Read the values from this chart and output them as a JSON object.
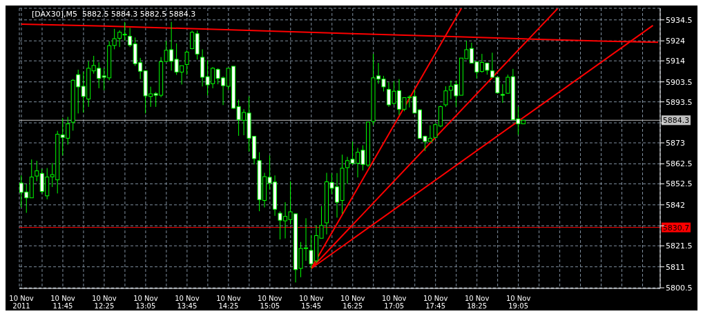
{
  "chart_data": {
    "type": "candlestick",
    "title": "[DAX30],M5  5882.5 5884.3 5882.5 5884.3",
    "series": [
      {
        "type": "candlestick",
        "color": "#00ff00",
        "x": [
          "2011-11-10T11:05",
          "2011-11-10T11:10",
          "2011-11-10T11:15",
          "2011-11-10T11:20",
          "2011-11-10T11:25",
          "2011-11-10T11:30",
          "2011-11-10T11:35",
          "2011-11-10T11:40",
          "2011-11-10T11:45",
          "2011-11-10T11:50",
          "2011-11-10T11:55",
          "2011-11-10T12:00",
          "2011-11-10T12:05",
          "2011-11-10T12:10",
          "2011-11-10T12:15",
          "2011-11-10T12:20",
          "2011-11-10T12:25",
          "2011-11-10T12:30",
          "2011-11-10T12:35",
          "2011-11-10T12:40",
          "2011-11-10T12:45",
          "2011-11-10T12:50",
          "2011-11-10T12:55",
          "2011-11-10T13:00",
          "2011-11-10T13:05",
          "2011-11-10T13:10",
          "2011-11-10T13:15",
          "2011-11-10T13:20",
          "2011-11-10T13:25",
          "2011-11-10T13:30",
          "2011-11-10T13:35",
          "2011-11-10T13:40",
          "2011-11-10T13:45",
          "2011-11-10T13:50",
          "2011-11-10T13:55",
          "2011-11-10T14:00",
          "2011-11-10T14:05",
          "2011-11-10T14:10",
          "2011-11-10T14:15",
          "2011-11-10T14:20",
          "2011-11-10T14:25",
          "2011-11-10T14:30",
          "2011-11-10T14:35",
          "2011-11-10T14:40",
          "2011-11-10T14:45",
          "2011-11-10T14:50",
          "2011-11-10T14:55",
          "2011-11-10T15:00",
          "2011-11-10T15:05",
          "2011-11-10T15:10",
          "2011-11-10T15:15",
          "2011-11-10T15:20",
          "2011-11-10T15:25",
          "2011-11-10T15:30",
          "2011-11-10T15:35",
          "2011-11-10T15:40",
          "2011-11-10T15:45",
          "2011-11-10T15:50",
          "2011-11-10T15:55",
          "2011-11-10T16:00",
          "2011-11-10T16:05",
          "2011-11-10T16:10",
          "2011-11-10T16:15",
          "2011-11-10T16:20",
          "2011-11-10T16:25",
          "2011-11-10T16:30",
          "2011-11-10T16:35",
          "2011-11-10T16:40",
          "2011-11-10T16:45",
          "2011-11-10T16:50",
          "2011-11-10T16:55",
          "2011-11-10T17:00",
          "2011-11-10T17:05",
          "2011-11-10T17:10",
          "2011-11-10T17:15",
          "2011-11-10T17:20",
          "2011-11-10T17:25",
          "2011-11-10T17:30",
          "2011-11-10T17:35",
          "2011-11-10T17:40",
          "2011-11-10T17:45",
          "2011-11-10T17:50",
          "2011-11-10T17:55",
          "2011-11-10T18:00",
          "2011-11-10T18:05",
          "2011-11-10T18:10",
          "2011-11-10T18:15",
          "2011-11-10T18:20",
          "2011-11-10T18:25",
          "2011-11-10T18:30",
          "2011-11-10T18:35",
          "2011-11-10T18:40",
          "2011-11-10T18:45",
          "2011-11-10T18:50",
          "2011-11-10T18:55",
          "2011-11-10T19:00",
          "2011-11-10T19:05",
          "2011-11-10T19:10"
        ],
        "ohlc": [
          [
            5852.9,
            5856.7,
            5840.7,
            5848.2
          ],
          [
            5848.4,
            5852.3,
            5838.0,
            5845.5
          ],
          [
            5845.5,
            5864.7,
            5845.5,
            5855.9
          ],
          [
            5856.4,
            5864.0,
            5853.8,
            5859.0
          ],
          [
            5857.7,
            5860.0,
            5847.6,
            5848.7
          ],
          [
            5846.5,
            5860.4,
            5844.8,
            5855.9
          ],
          [
            5856.0,
            5862.9,
            5850.9,
            5857.1
          ],
          [
            5854.5,
            5879.0,
            5847.7,
            5877.3
          ],
          [
            5877.0,
            5885.4,
            5866.7,
            5875.7
          ],
          [
            5875.3,
            5886.0,
            5872.1,
            5882.5
          ],
          [
            5883.3,
            5904.9,
            5879.1,
            5904.3
          ],
          [
            5907.1,
            5909.6,
            5887.7,
            5901.0
          ],
          [
            5901.3,
            5908.5,
            5888.1,
            5896.2
          ],
          [
            5894.9,
            5913.8,
            5891.0,
            5910.3
          ],
          [
            5909.0,
            5916.5,
            5907.6,
            5911.7
          ],
          [
            5910.3,
            5913.3,
            5900.3,
            5905.2
          ],
          [
            5906.5,
            5910.4,
            5899.3,
            5905.8
          ],
          [
            5905.5,
            5923.8,
            5904.3,
            5921.6
          ],
          [
            5921.7,
            5930.0,
            5919.8,
            5925.1
          ],
          [
            5925.3,
            5929.3,
            5920.9,
            5928.3
          ],
          [
            5927.0,
            5933.5,
            5924.1,
            5927.3
          ],
          [
            5926.3,
            5930.5,
            5920.9,
            5921.9
          ],
          [
            5922.5,
            5925.7,
            5911.5,
            5912.6
          ],
          [
            5913.1,
            5915.5,
            5904.9,
            5908.8
          ],
          [
            5909.0,
            5909.1,
            5887.7,
            5896.5
          ],
          [
            5896.2,
            5901.1,
            5891.0,
            5897.5
          ],
          [
            5897.6,
            5898.4,
            5891.0,
            5896.8
          ],
          [
            5896.8,
            5915.9,
            5895.8,
            5913.6
          ],
          [
            5913.7,
            5924.1,
            5913.6,
            5919.3
          ],
          [
            5919.6,
            5933.5,
            5909.1,
            5913.8
          ],
          [
            5914.8,
            5922.8,
            5907.0,
            5908.4
          ],
          [
            5908.4,
            5911.6,
            5902.2,
            5911.6
          ],
          [
            5912.2,
            5919.3,
            5907.0,
            5918.4
          ],
          [
            5920.1,
            5929.1,
            5919.8,
            5928.3
          ],
          [
            5927.6,
            5929.1,
            5914.7,
            5917.4
          ],
          [
            5915.8,
            5919.8,
            5901.2,
            5905.8
          ],
          [
            5906.1,
            5914.3,
            5896.7,
            5902.0
          ],
          [
            5902.6,
            5910.9,
            5900.3,
            5910.3
          ],
          [
            5909.7,
            5910.3,
            5902.3,
            5905.2
          ],
          [
            5905.5,
            5906.2,
            5891.9,
            5901.6
          ],
          [
            5901.3,
            5910.3,
            5899.4,
            5910.3
          ],
          [
            5911.3,
            5911.3,
            5890.0,
            5890.3
          ],
          [
            5891.1,
            5894.6,
            5876.5,
            5884.6
          ],
          [
            5884.3,
            5889.8,
            5876.8,
            5888.2
          ],
          [
            5887.9,
            5896.2,
            5868.6,
            5875.3
          ],
          [
            5876.3,
            5876.3,
            5862.2,
            5865.1
          ],
          [
            5864.1,
            5868.3,
            5838.8,
            5844.6
          ],
          [
            5844.2,
            5858.0,
            5840.7,
            5856.1
          ],
          [
            5855.8,
            5866.7,
            5849.7,
            5852.9
          ],
          [
            5853.4,
            5856.7,
            5836.5,
            5839.8
          ],
          [
            5837.8,
            5838.8,
            5824.7,
            5834.3
          ],
          [
            5834.0,
            5843.3,
            5825.2,
            5836.2
          ],
          [
            5834.6,
            5853.8,
            5832.2,
            5838.5
          ],
          [
            5837.5,
            5837.5,
            5803.2,
            5809.6
          ],
          [
            5810.2,
            5823.4,
            5805.8,
            5820.2
          ],
          [
            5820.1,
            5835.3,
            5814.0,
            5820.5
          ],
          [
            5819.2,
            5826.9,
            5810.2,
            5812.5
          ],
          [
            5814.0,
            5831.7,
            5812.9,
            5826.6
          ],
          [
            5825.3,
            5841.4,
            5825.3,
            5831.7
          ],
          [
            5833.0,
            5858.0,
            5827.2,
            5853.5
          ],
          [
            5853.2,
            5857.7,
            5847.4,
            5850.3
          ],
          [
            5851.0,
            5857.9,
            5835.6,
            5843.3
          ],
          [
            5844.2,
            5867.1,
            5837.5,
            5860.3
          ],
          [
            5860.6,
            5866.0,
            5852.5,
            5864.1
          ],
          [
            5864.8,
            5873.7,
            5861.9,
            5862.8
          ],
          [
            5862.8,
            5870.5,
            5855.7,
            5868.3
          ],
          [
            5869.3,
            5871.8,
            5859.2,
            5862.2
          ],
          [
            5861.9,
            5883.4,
            5860.9,
            5883.4
          ],
          [
            5883.7,
            5917.5,
            5881.8,
            5905.5
          ],
          [
            5906.5,
            5913.0,
            5902.5,
            5904.9
          ],
          [
            5904.9,
            5906.5,
            5898.7,
            5901.0
          ],
          [
            5899.7,
            5903.3,
            5891.0,
            5892.0
          ],
          [
            5892.7,
            5903.9,
            5892.0,
            5898.8
          ],
          [
            5899.1,
            5904.9,
            5886.9,
            5889.8
          ],
          [
            5889.8,
            5895.6,
            5888.8,
            5895.6
          ],
          [
            5895.9,
            5896.8,
            5890.7,
            5895.9
          ],
          [
            5896.2,
            5899.4,
            5887.9,
            5887.9
          ],
          [
            5889.5,
            5889.8,
            5875.0,
            5875.3
          ],
          [
            5876.3,
            5876.6,
            5868.9,
            5873.7
          ],
          [
            5873.7,
            5881.8,
            5873.7,
            5875.3
          ],
          [
            5875.7,
            5882.7,
            5875.3,
            5882.1
          ],
          [
            5881.4,
            5891.7,
            5880.8,
            5891.1
          ],
          [
            5892.0,
            5901.3,
            5891.0,
            5899.0
          ],
          [
            5899.3,
            5904.2,
            5894.9,
            5901.3
          ],
          [
            5902.2,
            5904.2,
            5891.0,
            5896.5
          ],
          [
            5896.8,
            5915.4,
            5896.8,
            5915.4
          ],
          [
            5915.1,
            5924.1,
            5915.1,
            5919.6
          ],
          [
            5920.2,
            5923.1,
            5912.9,
            5912.9
          ],
          [
            5913.5,
            5913.5,
            5905.2,
            5908.4
          ],
          [
            5908.7,
            5917.5,
            5908.1,
            5913.2
          ],
          [
            5912.9,
            5912.9,
            5907.1,
            5909.3
          ],
          [
            5909.0,
            5918.1,
            5905.8,
            5905.8
          ],
          [
            5905.8,
            5905.8,
            5897.5,
            5898.0
          ],
          [
            5897.2,
            5902.3,
            5893.0,
            5896.8
          ],
          [
            5897.8,
            5907.1,
            5897.5,
            5905.8
          ],
          [
            5906.1,
            5910.0,
            5884.6,
            5884.6
          ],
          [
            5885.0,
            5891.1,
            5877.0,
            5882.5
          ],
          [
            5882.5,
            5884.3,
            5882.5,
            5884.3
          ]
        ]
      },
      {
        "type": "line",
        "color": "#ff0000",
        "x": [
          "2011-11-10T11:05",
          "2011-11-10T12:25",
          "2011-11-10T13:50",
          "2011-11-10T15:10",
          "2011-11-10T16:30",
          "2011-11-10T17:50",
          "2011-11-10T19:10",
          "2011-11-10T20:30",
          "2011-11-10T21:20"
        ],
        "values": [
          5932.4,
          5931.4,
          5930.1,
          5928.8,
          5927.5,
          5926.3,
          5925.0,
          5923.8,
          5923.3
        ]
      },
      {
        "type": "line",
        "color": "#ff0000",
        "x": [
          "2011-11-10T15:45",
          "2011-11-10T18:10"
        ],
        "values": [
          5810.2,
          5940.3
        ]
      },
      {
        "type": "line",
        "color": "#ff0000",
        "x": [
          "2011-11-10T15:45",
          "2011-11-10T19:43"
        ],
        "values": [
          5810.2,
          5940.2
        ]
      },
      {
        "type": "line",
        "color": "#ff0000",
        "x": [
          "2011-11-10T15:45",
          "2011-11-10T21:15"
        ],
        "values": [
          5810.2,
          5931.7
        ]
      }
    ],
    "xlim": [
      "2011-11-10T11:03",
      "2011-11-10T21:22"
    ],
    "xticks": [
      {
        "value": "2011-11-10T11:05",
        "label": "10 Nov 2011"
      },
      {
        "value": "2011-11-10T11:25",
        "label": null
      },
      {
        "value": "2011-11-10T11:45",
        "label": "10 Nov 11:45"
      },
      {
        "value": "2011-11-10T12:05",
        "label": null
      },
      {
        "value": "2011-11-10T12:25",
        "label": "10 Nov 12:25"
      },
      {
        "value": "2011-11-10T12:45",
        "label": null
      },
      {
        "value": "2011-11-10T13:05",
        "label": "10 Nov 13:05"
      },
      {
        "value": "2011-11-10T13:25",
        "label": null
      },
      {
        "value": "2011-11-10T13:45",
        "label": "10 Nov 13:45"
      },
      {
        "value": "2011-11-10T14:05",
        "label": null
      },
      {
        "value": "2011-11-10T14:25",
        "label": "10 Nov 14:25"
      },
      {
        "value": "2011-11-10T14:45",
        "label": null
      },
      {
        "value": "2011-11-10T15:05",
        "label": "10 Nov 15:05"
      },
      {
        "value": "2011-11-10T15:25",
        "label": null
      },
      {
        "value": "2011-11-10T15:45",
        "label": "10 Nov 15:45"
      },
      {
        "value": "2011-11-10T16:05",
        "label": null
      },
      {
        "value": "2011-11-10T16:25",
        "label": "10 Nov 16:25"
      },
      {
        "value": "2011-11-10T16:45",
        "label": null
      },
      {
        "value": "2011-11-10T17:05",
        "label": "10 Nov 17:05"
      },
      {
        "value": "2011-11-10T17:25",
        "label": null
      },
      {
        "value": "2011-11-10T17:45",
        "label": "10 Nov 17:45"
      },
      {
        "value": "2011-11-10T18:05",
        "label": null
      },
      {
        "value": "2011-11-10T18:25",
        "label": "10 Nov 18:25"
      },
      {
        "value": "2011-11-10T18:45",
        "label": null
      },
      {
        "value": "2011-11-10T19:05",
        "label": "10 Nov 19:05"
      },
      {
        "value": "2011-11-10T19:25",
        "label": null
      },
      {
        "value": "2011-11-10T19:45",
        "label": null
      },
      {
        "value": "2011-11-10T20:05",
        "label": null
      },
      {
        "value": "2011-11-10T20:25",
        "label": null
      },
      {
        "value": "2011-11-10T20:45",
        "label": null
      },
      {
        "value": "2011-11-10T21:05",
        "label": null
      }
    ],
    "ylim": [
      5800.2,
      5940.3
    ],
    "yticks": [
      5800.5,
      5811.0,
      5821.5,
      {
        "value": 5831.5,
        "label": null
      },
      5842.0,
      5852.5,
      5862.5,
      5873.0,
      {
        "value": 5883.0,
        "label": null
      },
      5893.5,
      5903.5,
      5914.0,
      5924.0,
      5934.5
    ],
    "ref_lines": [
      {
        "axis": "y",
        "value": 5884.3,
        "label": "5884.3",
        "color": "#c0c0c0"
      },
      {
        "axis": "y",
        "value": 5830.7,
        "label": "5830.7",
        "color": "#ff0000"
      }
    ],
    "grid": true,
    "legend": false
  }
}
